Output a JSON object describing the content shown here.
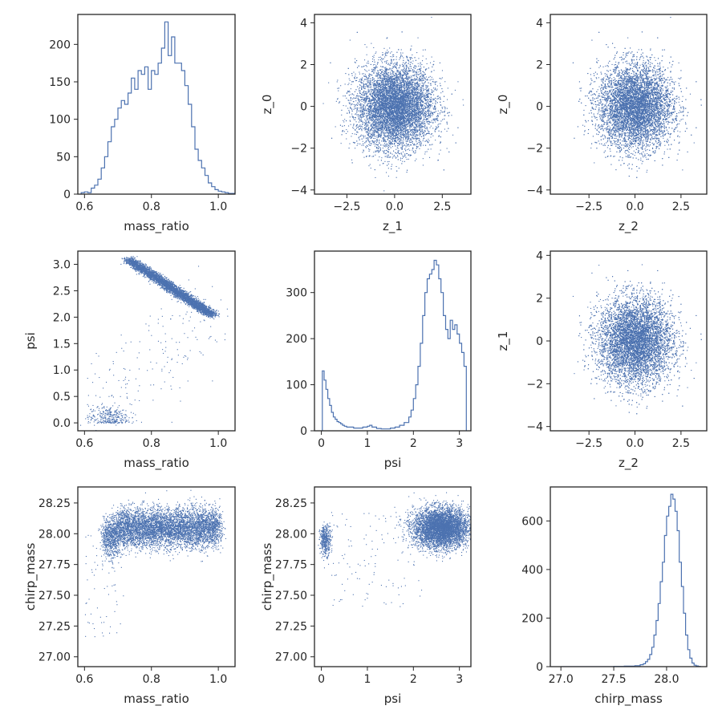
{
  "chart_data": [
    {
      "panel": "mass_ratio-hist",
      "type": "histogram",
      "xlabel": "mass_ratio",
      "ylabel": "",
      "xlim": [
        0.58,
        1.05
      ],
      "ylim": [
        0,
        240
      ],
      "xticks": [
        0.6,
        0.8,
        1.0
      ],
      "xtick_labels": [
        "0.6",
        "0.8",
        "1.0"
      ],
      "yticks": [
        0,
        50,
        100,
        150,
        200
      ],
      "ytick_labels": [
        "0",
        "50",
        "100",
        "150",
        "200"
      ],
      "color": "#4c72b0",
      "bins": [
        [
          0.59,
          2
        ],
        [
          0.6,
          3
        ],
        [
          0.61,
          2
        ],
        [
          0.62,
          8
        ],
        [
          0.63,
          12
        ],
        [
          0.64,
          20
        ],
        [
          0.65,
          35
        ],
        [
          0.66,
          50
        ],
        [
          0.67,
          70
        ],
        [
          0.68,
          90
        ],
        [
          0.69,
          100
        ],
        [
          0.7,
          115
        ],
        [
          0.71,
          125
        ],
        [
          0.72,
          120
        ],
        [
          0.73,
          135
        ],
        [
          0.74,
          155
        ],
        [
          0.75,
          140
        ],
        [
          0.76,
          165
        ],
        [
          0.77,
          160
        ],
        [
          0.78,
          170
        ],
        [
          0.79,
          140
        ],
        [
          0.8,
          165
        ],
        [
          0.81,
          160
        ],
        [
          0.82,
          175
        ],
        [
          0.83,
          195
        ],
        [
          0.84,
          230
        ],
        [
          0.85,
          185
        ],
        [
          0.86,
          210
        ],
        [
          0.87,
          175
        ],
        [
          0.88,
          175
        ],
        [
          0.89,
          165
        ],
        [
          0.9,
          145
        ],
        [
          0.91,
          120
        ],
        [
          0.92,
          90
        ],
        [
          0.93,
          60
        ],
        [
          0.94,
          45
        ],
        [
          0.95,
          35
        ],
        [
          0.96,
          25
        ],
        [
          0.97,
          15
        ],
        [
          0.98,
          10
        ],
        [
          0.99,
          6
        ],
        [
          1.0,
          4
        ],
        [
          1.01,
          3
        ],
        [
          1.02,
          2
        ],
        [
          1.03,
          1
        ],
        [
          1.04,
          1
        ]
      ]
    },
    {
      "panel": "z_0-vs-z_1",
      "type": "scatter",
      "xlabel": "z_1",
      "ylabel": "z_0",
      "xlim": [
        -4.2,
        4.0
      ],
      "ylim": [
        -4.2,
        4.4
      ],
      "xticks": [
        -2.5,
        0,
        2.5
      ],
      "xtick_labels": [
        "−2.5",
        "0.0",
        "2.5"
      ],
      "yticks": [
        -4,
        -2,
        0,
        2,
        4
      ],
      "ytick_labels": [
        "−4",
        "−2",
        "0",
        "2",
        "4"
      ],
      "color": "#4c72b0",
      "distribution": {
        "kind": "gaussian2d",
        "mean": [
          0,
          0
        ],
        "std": [
          1,
          1
        ],
        "n": 9000
      }
    },
    {
      "panel": "z_0-vs-z_2",
      "type": "scatter",
      "xlabel": "z_2",
      "ylabel": "z_0",
      "xlim": [
        -4.6,
        3.9
      ],
      "ylim": [
        -4.2,
        4.4
      ],
      "xticks": [
        -2.5,
        0,
        2.5
      ],
      "xtick_labels": [
        "−2.5",
        "0.0",
        "2.5"
      ],
      "yticks": [
        -4,
        -2,
        0,
        2,
        4
      ],
      "ytick_labels": [
        "−4",
        "−2",
        "0",
        "2",
        "4"
      ],
      "color": "#4c72b0",
      "distribution": {
        "kind": "gaussian2d",
        "mean": [
          0,
          0
        ],
        "std": [
          1,
          1
        ],
        "n": 9000
      }
    },
    {
      "panel": "psi-vs-mass_ratio",
      "type": "scatter",
      "xlabel": "mass_ratio",
      "ylabel": "psi",
      "xlim": [
        0.58,
        1.05
      ],
      "ylim": [
        -0.15,
        3.25
      ],
      "xticks": [
        0.6,
        0.8,
        1.0
      ],
      "xtick_labels": [
        "0.6",
        "0.8",
        "1.0"
      ],
      "yticks": [
        0,
        0.5,
        1.0,
        1.5,
        2.0,
        2.5,
        3.0
      ],
      "ytick_labels": [
        "0.0",
        "0.5",
        "1.0",
        "1.5",
        "2.0",
        "2.5",
        "3.0"
      ],
      "color": "#4c72b0",
      "distribution": {
        "kind": "band+cluster",
        "band": {
          "x_start": 0.73,
          "y_start": 3.1,
          "x_end": 0.98,
          "y_end": 2.05,
          "width": 0.08,
          "n": 4000
        },
        "cluster": {
          "x_center": 0.67,
          "y_center": 0.1,
          "x_spread": 0.03,
          "y_spread": 0.12,
          "n": 300
        },
        "scatter": {
          "n": 180
        }
      }
    },
    {
      "panel": "psi-hist",
      "type": "histogram",
      "xlabel": "psi",
      "ylabel": "",
      "xlim": [
        -0.15,
        3.25
      ],
      "ylim": [
        0,
        390
      ],
      "xticks": [
        0,
        1,
        2,
        3
      ],
      "xtick_labels": [
        "0",
        "1",
        "2",
        "3"
      ],
      "yticks": [
        0,
        100,
        200,
        300
      ],
      "ytick_labels": [
        "0",
        "100",
        "200",
        "300"
      ],
      "color": "#4c72b0",
      "bins": [
        [
          0.02,
          130
        ],
        [
          0.06,
          110
        ],
        [
          0.1,
          90
        ],
        [
          0.14,
          70
        ],
        [
          0.18,
          55
        ],
        [
          0.22,
          40
        ],
        [
          0.26,
          30
        ],
        [
          0.3,
          25
        ],
        [
          0.34,
          20
        ],
        [
          0.38,
          18
        ],
        [
          0.42,
          15
        ],
        [
          0.46,
          12
        ],
        [
          0.5,
          10
        ],
        [
          0.55,
          8
        ],
        [
          0.6,
          8
        ],
        [
          0.7,
          6
        ],
        [
          0.8,
          6
        ],
        [
          0.9,
          8
        ],
        [
          1.0,
          10
        ],
        [
          1.05,
          12
        ],
        [
          1.1,
          8
        ],
        [
          1.2,
          5
        ],
        [
          1.3,
          4
        ],
        [
          1.4,
          4
        ],
        [
          1.5,
          6
        ],
        [
          1.6,
          8
        ],
        [
          1.7,
          12
        ],
        [
          1.8,
          18
        ],
        [
          1.9,
          30
        ],
        [
          1.95,
          45
        ],
        [
          2.0,
          70
        ],
        [
          2.05,
          100
        ],
        [
          2.1,
          140
        ],
        [
          2.15,
          190
        ],
        [
          2.2,
          250
        ],
        [
          2.25,
          300
        ],
        [
          2.3,
          330
        ],
        [
          2.35,
          340
        ],
        [
          2.4,
          350
        ],
        [
          2.45,
          370
        ],
        [
          2.5,
          360
        ],
        [
          2.55,
          330
        ],
        [
          2.6,
          300
        ],
        [
          2.65,
          250
        ],
        [
          2.7,
          220
        ],
        [
          2.75,
          200
        ],
        [
          2.8,
          240
        ],
        [
          2.85,
          220
        ],
        [
          2.9,
          230
        ],
        [
          2.95,
          210
        ],
        [
          3.0,
          190
        ],
        [
          3.05,
          170
        ],
        [
          3.1,
          140
        ]
      ]
    },
    {
      "panel": "z_1-vs-z_2",
      "type": "scatter",
      "xlabel": "z_2",
      "ylabel": "z_1",
      "xlim": [
        -4.6,
        3.9
      ],
      "ylim": [
        -4.2,
        4.2
      ],
      "xticks": [
        -2.5,
        0,
        2.5
      ],
      "xtick_labels": [
        "−2.5",
        "0.0",
        "2.5"
      ],
      "yticks": [
        -4,
        -2,
        0,
        2,
        4
      ],
      "ytick_labels": [
        "−4",
        "−2",
        "0",
        "2",
        "4"
      ],
      "color": "#4c72b0",
      "distribution": {
        "kind": "gaussian2d",
        "mean": [
          0,
          0
        ],
        "std": [
          1,
          1
        ],
        "n": 9000
      }
    },
    {
      "panel": "chirp_mass-vs-mass_ratio",
      "type": "scatter",
      "xlabel": "mass_ratio",
      "ylabel": "chirp_mass",
      "xlim": [
        0.58,
        1.05
      ],
      "ylim": [
        26.92,
        28.38
      ],
      "xticks": [
        0.6,
        0.8,
        1.0
      ],
      "xtick_labels": [
        "0.6",
        "0.8",
        "1.0"
      ],
      "yticks": [
        27.0,
        27.25,
        27.5,
        27.75,
        28.0,
        28.25
      ],
      "ytick_labels": [
        "27.00",
        "27.25",
        "27.50",
        "27.75",
        "28.00",
        "28.25"
      ],
      "color": "#4c72b0",
      "distribution": {
        "kind": "band",
        "x_range": [
          0.66,
          1.0
        ],
        "y_center": 28.05,
        "y_spread": 0.08,
        "n": 6000,
        "scatter": {
          "n": 60
        }
      }
    },
    {
      "panel": "chirp_mass-vs-psi",
      "type": "scatter",
      "xlabel": "psi",
      "ylabel": "chirp_mass",
      "xlim": [
        -0.15,
        3.25
      ],
      "ylim": [
        26.92,
        28.38
      ],
      "xticks": [
        0,
        1,
        2,
        3
      ],
      "xtick_labels": [
        "0",
        "1",
        "2",
        "3"
      ],
      "yticks": [
        27.0,
        27.25,
        27.5,
        27.75,
        28.0,
        28.25
      ],
      "ytick_labels": [
        "27.00",
        "27.25",
        "27.50",
        "27.75",
        "28.00",
        "28.25"
      ],
      "color": "#4c72b0",
      "distribution": {
        "kind": "clusters",
        "clusters": [
          {
            "x_center": 0.08,
            "y_center": 27.95,
            "x_spread": 0.06,
            "y_spread": 0.06,
            "n": 400
          },
          {
            "x_center": 2.6,
            "y_center": 28.05,
            "x_spread": 0.3,
            "y_spread": 0.08,
            "n": 5000
          }
        ],
        "scatter": {
          "n": 120
        }
      }
    },
    {
      "panel": "chirp_mass-hist",
      "type": "histogram",
      "xlabel": "chirp_mass",
      "ylabel": "",
      "xlim": [
        26.9,
        28.38
      ],
      "ylim": [
        0,
        740
      ],
      "xticks": [
        27.0,
        27.5,
        28.0
      ],
      "xtick_labels": [
        "27.0",
        "27.5",
        "28.0"
      ],
      "yticks": [
        0,
        200,
        400,
        600
      ],
      "ytick_labels": [
        "0",
        "200",
        "400",
        "600"
      ],
      "color": "#4c72b0",
      "bins": [
        [
          27.0,
          0
        ],
        [
          27.5,
          1
        ],
        [
          27.6,
          2
        ],
        [
          27.7,
          4
        ],
        [
          27.75,
          8
        ],
        [
          27.78,
          12
        ],
        [
          27.8,
          20
        ],
        [
          27.82,
          30
        ],
        [
          27.84,
          50
        ],
        [
          27.86,
          80
        ],
        [
          27.88,
          130
        ],
        [
          27.9,
          190
        ],
        [
          27.92,
          260
        ],
        [
          27.94,
          350
        ],
        [
          27.96,
          430
        ],
        [
          27.98,
          540
        ],
        [
          28.0,
          620
        ],
        [
          28.02,
          660
        ],
        [
          28.04,
          710
        ],
        [
          28.06,
          690
        ],
        [
          28.08,
          640
        ],
        [
          28.1,
          560
        ],
        [
          28.12,
          430
        ],
        [
          28.14,
          330
        ],
        [
          28.16,
          220
        ],
        [
          28.18,
          130
        ],
        [
          28.2,
          70
        ],
        [
          28.22,
          35
        ],
        [
          28.24,
          15
        ],
        [
          28.26,
          6
        ],
        [
          28.28,
          3
        ],
        [
          28.3,
          1
        ]
      ]
    }
  ]
}
